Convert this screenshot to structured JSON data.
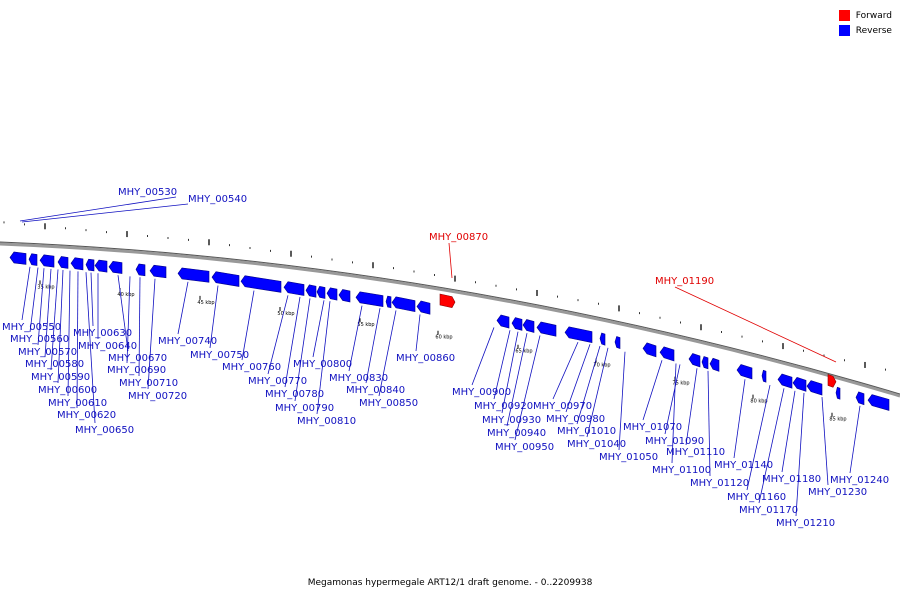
{
  "legend": {
    "forward_label": "Forward",
    "reverse_label": "Reverse",
    "forward_color": "#ff0000",
    "reverse_color": "#0000ff"
  },
  "caption": "Megamonas hypermegale ART12/1 draft genome. - 0..2209938",
  "scale_labels": [
    "35 kbp",
    "40 kbp",
    "45 kbp",
    "50 kbp",
    "55 kbp",
    "60 kbp",
    "65 kbp",
    "70 kbp",
    "75 kbp",
    "80 kbp",
    "85 kbp"
  ],
  "forward_genes": [
    "MHY_00870",
    "MHY_01190"
  ],
  "reverse_genes_top": [
    "MHY_00530",
    "MHY_00540"
  ],
  "reverse_genes": [
    "MHY_00550",
    "MHY_00560",
    "MHY_00570",
    "MHY_00580",
    "MHY_00590",
    "MHY_00600",
    "MHY_00610",
    "MHY_00620",
    "MHY_00630",
    "MHY_00640",
    "MHY_00650",
    "MHY_00670",
    "MHY_00690",
    "MHY_00710",
    "MHY_00720",
    "MHY_00740",
    "MHY_00750",
    "MHY_00760",
    "MHY_00770",
    "MHY_00780",
    "MHY_00790",
    "MHY_00800",
    "MHY_00810",
    "MHY_00830",
    "MHY_00840",
    "MHY_00850",
    "MHY_00860",
    "MHY_00900",
    "MHY_00920",
    "MHY_00930",
    "MHY_00940",
    "MHY_00950",
    "MHY_00970",
    "MHY_00980",
    "MHY_01010",
    "MHY_01040",
    "MHY_01050",
    "MHY_01070",
    "MHY_01090",
    "MHY_01100",
    "MHY_01110",
    "MHY_01120",
    "MHY_01140",
    "MHY_01160",
    "MHY_01170",
    "MHY_01180",
    "MHY_01210",
    "MHY_01230",
    "MHY_01240"
  ]
}
